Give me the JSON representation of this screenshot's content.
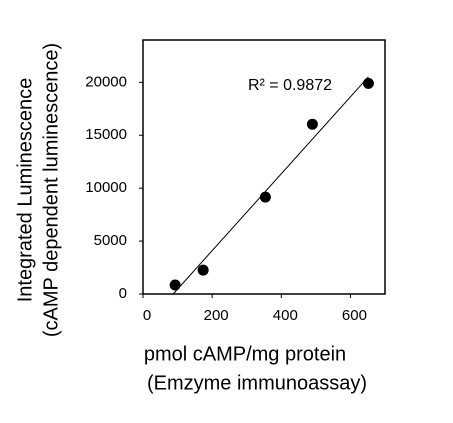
{
  "chart_data": {
    "type": "scatter",
    "x_label": [
      "pmol cAMP/mg protein",
      "(Emzyme immunoassay)"
    ],
    "y_label": [
      "Integrated Luminescence",
      "(cAMP dependent luminescence)"
    ],
    "annotation": "R² = 0.9872",
    "x": [
      93,
      174,
      354,
      490,
      652
    ],
    "values": [
      850,
      2260,
      9150,
      16040,
      19900
    ],
    "color": "#000000",
    "trendline": "linear",
    "xlim": [
      0,
      700
    ],
    "xticks": [
      0,
      200,
      400,
      600
    ],
    "ylim": [
      0,
      24000
    ],
    "yticks": [
      0,
      5000,
      10000,
      15000,
      20000
    ]
  }
}
